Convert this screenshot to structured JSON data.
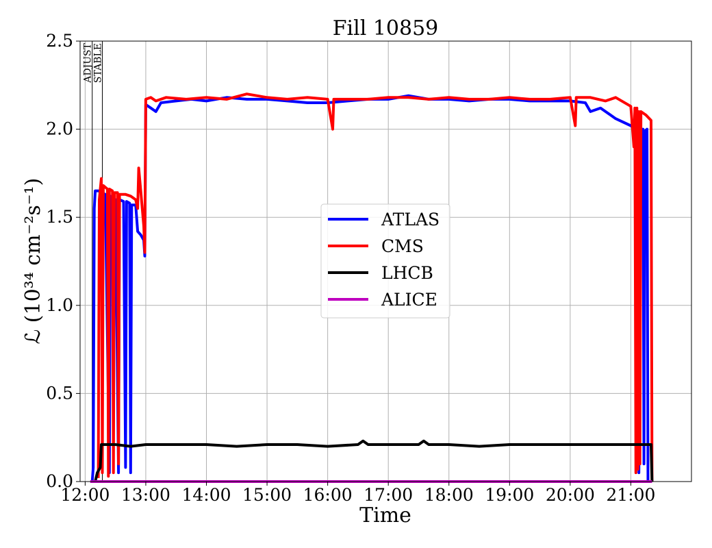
{
  "chart_data": {
    "type": "line",
    "title": "Fill 10859",
    "xlabel": "Time",
    "ylabel": "ℒ (10³⁴ cm⁻²s⁻¹)",
    "ylim": [
      0,
      2.5
    ],
    "xlim": [
      "11:55",
      "22:00"
    ],
    "grid": true,
    "legend_position": "center",
    "x_ticks": [
      "12:00",
      "13:00",
      "14:00",
      "15:00",
      "16:00",
      "17:00",
      "18:00",
      "19:00",
      "20:00",
      "21:00"
    ],
    "y_ticks": [
      "0.0",
      "0.5",
      "1.0",
      "1.5",
      "2.0",
      "2.5"
    ],
    "phase_markers": [
      {
        "label": "ADJUST",
        "time": "12:07"
      },
      {
        "label": "STABLE",
        "time": "12:17"
      }
    ],
    "series": [
      {
        "name": "ATLAS",
        "color": "#0000ff",
        "points": [
          [
            "12:07",
            0.0
          ],
          [
            "12:08",
            0.08
          ],
          [
            "12:09",
            1.55
          ],
          [
            "12:10",
            1.65
          ],
          [
            "12:13",
            1.65
          ],
          [
            "12:20",
            1.63
          ],
          [
            "12:24",
            0.05
          ],
          [
            "12:25",
            1.62
          ],
          [
            "12:30",
            1.6
          ],
          [
            "12:33",
            0.05
          ],
          [
            "12:34",
            1.6
          ],
          [
            "12:38",
            1.59
          ],
          [
            "12:40",
            0.08
          ],
          [
            "12:41",
            1.59
          ],
          [
            "12:44",
            1.58
          ],
          [
            "12:45",
            0.05
          ],
          [
            "12:46",
            1.57
          ],
          [
            "12:50",
            1.57
          ],
          [
            "12:52",
            1.42
          ],
          [
            "12:55",
            1.4
          ],
          [
            "12:58",
            1.37
          ],
          [
            "12:59",
            1.28
          ],
          [
            "13:00",
            2.14
          ],
          [
            "13:05",
            2.12
          ],
          [
            "13:10",
            2.1
          ],
          [
            "13:15",
            2.15
          ],
          [
            "13:30",
            2.16
          ],
          [
            "13:45",
            2.17
          ],
          [
            "14:00",
            2.16
          ],
          [
            "14:20",
            2.18
          ],
          [
            "14:40",
            2.17
          ],
          [
            "15:00",
            2.17
          ],
          [
            "15:20",
            2.16
          ],
          [
            "15:40",
            2.15
          ],
          [
            "16:00",
            2.15
          ],
          [
            "16:20",
            2.16
          ],
          [
            "16:40",
            2.17
          ],
          [
            "17:00",
            2.17
          ],
          [
            "17:20",
            2.19
          ],
          [
            "17:40",
            2.17
          ],
          [
            "18:00",
            2.17
          ],
          [
            "18:20",
            2.16
          ],
          [
            "18:40",
            2.17
          ],
          [
            "19:00",
            2.17
          ],
          [
            "19:20",
            2.16
          ],
          [
            "19:40",
            2.16
          ],
          [
            "20:00",
            2.16
          ],
          [
            "20:15",
            2.15
          ],
          [
            "20:20",
            2.1
          ],
          [
            "20:30",
            2.12
          ],
          [
            "20:45",
            2.06
          ],
          [
            "21:00",
            2.02
          ],
          [
            "21:05",
            2.0
          ],
          [
            "21:06",
            0.1
          ],
          [
            "21:07",
            2.0
          ],
          [
            "21:08",
            0.05
          ],
          [
            "21:09",
            2.0
          ],
          [
            "21:12",
            2.0
          ],
          [
            "21:13",
            0.1
          ],
          [
            "21:14",
            1.99
          ],
          [
            "21:16",
            2.0
          ],
          [
            "21:17",
            0.0
          ]
        ]
      },
      {
        "name": "CMS",
        "color": "#ff0000",
        "points": [
          [
            "12:13",
            0.02
          ],
          [
            "12:14",
            1.6
          ],
          [
            "12:16",
            1.72
          ],
          [
            "12:17",
            0.05
          ],
          [
            "12:18",
            1.68
          ],
          [
            "12:22",
            1.66
          ],
          [
            "12:23",
            0.03
          ],
          [
            "12:24",
            1.66
          ],
          [
            "12:27",
            1.65
          ],
          [
            "12:28",
            0.05
          ],
          [
            "12:29",
            1.64
          ],
          [
            "12:32",
            1.64
          ],
          [
            "12:33",
            0.1
          ],
          [
            "12:34",
            1.63
          ],
          [
            "12:40",
            1.63
          ],
          [
            "12:45",
            1.62
          ],
          [
            "12:50",
            1.6
          ],
          [
            "12:52",
            1.55
          ],
          [
            "12:53",
            1.78
          ],
          [
            "12:55",
            1.65
          ],
          [
            "12:58",
            1.45
          ],
          [
            "12:59",
            1.3
          ],
          [
            "13:00",
            2.17
          ],
          [
            "13:05",
            2.18
          ],
          [
            "13:10",
            2.16
          ],
          [
            "13:20",
            2.18
          ],
          [
            "13:40",
            2.17
          ],
          [
            "14:00",
            2.18
          ],
          [
            "14:20",
            2.17
          ],
          [
            "14:40",
            2.2
          ],
          [
            "15:00",
            2.18
          ],
          [
            "15:20",
            2.17
          ],
          [
            "15:40",
            2.18
          ],
          [
            "16:00",
            2.17
          ],
          [
            "16:05",
            2.0
          ],
          [
            "16:06",
            2.17
          ],
          [
            "16:20",
            2.17
          ],
          [
            "16:40",
            2.17
          ],
          [
            "17:00",
            2.18
          ],
          [
            "17:20",
            2.18
          ],
          [
            "17:40",
            2.17
          ],
          [
            "18:00",
            2.18
          ],
          [
            "18:20",
            2.17
          ],
          [
            "18:40",
            2.17
          ],
          [
            "19:00",
            2.18
          ],
          [
            "19:20",
            2.17
          ],
          [
            "19:40",
            2.17
          ],
          [
            "20:00",
            2.18
          ],
          [
            "20:05",
            2.02
          ],
          [
            "20:06",
            2.18
          ],
          [
            "20:20",
            2.18
          ],
          [
            "20:35",
            2.16
          ],
          [
            "20:45",
            2.18
          ],
          [
            "21:00",
            2.13
          ],
          [
            "21:03",
            1.9
          ],
          [
            "21:04",
            2.12
          ],
          [
            "21:05",
            0.05
          ],
          [
            "21:06",
            2.12
          ],
          [
            "21:07",
            0.07
          ],
          [
            "21:08",
            2.1
          ],
          [
            "21:09",
            0.1
          ],
          [
            "21:10",
            2.1
          ],
          [
            "21:15",
            2.08
          ],
          [
            "21:20",
            2.05
          ],
          [
            "21:21",
            0.0
          ]
        ]
      },
      {
        "name": "LHCB",
        "color": "#000000",
        "points": [
          [
            "12:10",
            0.0
          ],
          [
            "12:12",
            0.05
          ],
          [
            "12:15",
            0.08
          ],
          [
            "12:16",
            0.21
          ],
          [
            "12:30",
            0.21
          ],
          [
            "12:45",
            0.2
          ],
          [
            "13:00",
            0.21
          ],
          [
            "13:30",
            0.21
          ],
          [
            "14:00",
            0.21
          ],
          [
            "14:30",
            0.2
          ],
          [
            "15:00",
            0.21
          ],
          [
            "15:30",
            0.21
          ],
          [
            "16:00",
            0.2
          ],
          [
            "16:30",
            0.21
          ],
          [
            "16:35",
            0.23
          ],
          [
            "16:40",
            0.21
          ],
          [
            "17:00",
            0.21
          ],
          [
            "17:30",
            0.21
          ],
          [
            "17:35",
            0.23
          ],
          [
            "17:40",
            0.21
          ],
          [
            "18:00",
            0.21
          ],
          [
            "18:30",
            0.2
          ],
          [
            "19:00",
            0.21
          ],
          [
            "19:30",
            0.21
          ],
          [
            "20:00",
            0.21
          ],
          [
            "20:30",
            0.21
          ],
          [
            "21:00",
            0.21
          ],
          [
            "21:20",
            0.21
          ],
          [
            "21:21",
            0.0
          ]
        ]
      },
      {
        "name": "ALICE",
        "color": "#bf00bf",
        "points": [
          [
            "12:05",
            0.0
          ],
          [
            "21:21",
            0.0
          ]
        ]
      }
    ]
  }
}
